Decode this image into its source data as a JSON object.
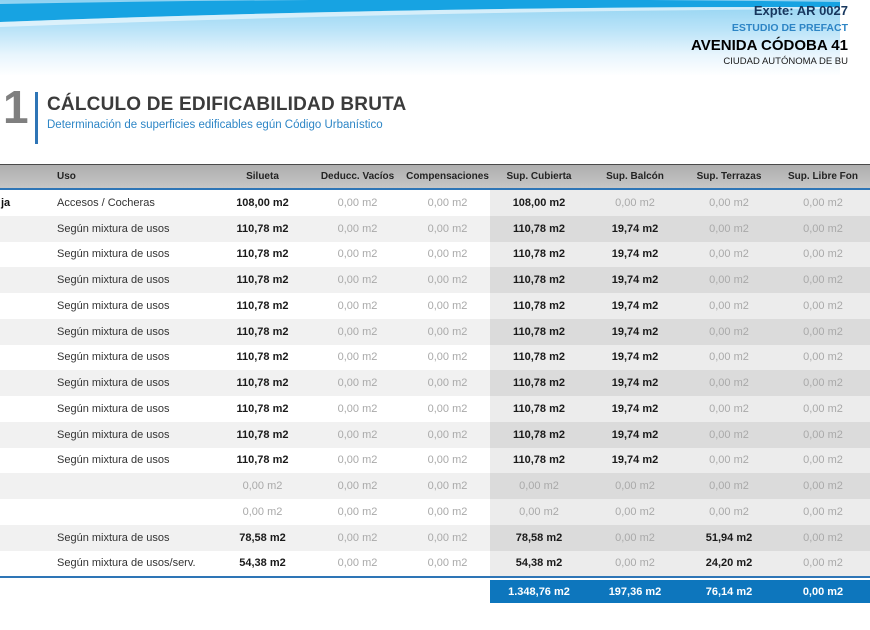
{
  "band": {
    "expediente": "Expte: AR 0027",
    "estudio": "ESTUDIO DE PREFACT",
    "address": "AVENIDA CÓDOBA 41",
    "city": "CIUDAD AUTÓNOMA DE BU"
  },
  "section": {
    "number": "1",
    "title": "CÁLCULO DE EDIFICABILIDAD BRUTA",
    "subtitle": "Determinación de superficies edificables egún Código Urbanístico"
  },
  "table": {
    "columns": [
      "",
      "Uso",
      "Silueta",
      "Deducc. Vacíos",
      "Compensaciones",
      "Sup. Cubierta",
      "Sup. Balcón",
      "Sup. Terrazas",
      "Sup. Libre Fon"
    ],
    "rows": [
      {
        "level": "ja",
        "uso": "Accesos / Cocheras",
        "silueta": "108,00 m2",
        "deducc": "0,00 m2",
        "comp": "0,00 m2",
        "cubierta": "108,00 m2",
        "balcon": "0,00 m2",
        "terrazas": "0,00 m2",
        "libre": "0,00 m2"
      },
      {
        "level": "",
        "uso": "Según mixtura de usos",
        "silueta": "110,78 m2",
        "deducc": "0,00 m2",
        "comp": "0,00 m2",
        "cubierta": "110,78 m2",
        "balcon": "19,74 m2",
        "terrazas": "0,00 m2",
        "libre": "0,00 m2"
      },
      {
        "level": "",
        "uso": "Según mixtura de usos",
        "silueta": "110,78 m2",
        "deducc": "0,00 m2",
        "comp": "0,00 m2",
        "cubierta": "110,78 m2",
        "balcon": "19,74 m2",
        "terrazas": "0,00 m2",
        "libre": "0,00 m2"
      },
      {
        "level": "",
        "uso": "Según mixtura de usos",
        "silueta": "110,78 m2",
        "deducc": "0,00 m2",
        "comp": "0,00 m2",
        "cubierta": "110,78 m2",
        "balcon": "19,74 m2",
        "terrazas": "0,00 m2",
        "libre": "0,00 m2"
      },
      {
        "level": "",
        "uso": "Según mixtura de usos",
        "silueta": "110,78 m2",
        "deducc": "0,00 m2",
        "comp": "0,00 m2",
        "cubierta": "110,78 m2",
        "balcon": "19,74 m2",
        "terrazas": "0,00 m2",
        "libre": "0,00 m2"
      },
      {
        "level": "",
        "uso": "Según mixtura de usos",
        "silueta": "110,78 m2",
        "deducc": "0,00 m2",
        "comp": "0,00 m2",
        "cubierta": "110,78 m2",
        "balcon": "19,74 m2",
        "terrazas": "0,00 m2",
        "libre": "0,00 m2"
      },
      {
        "level": "",
        "uso": "Según mixtura de usos",
        "silueta": "110,78 m2",
        "deducc": "0,00 m2",
        "comp": "0,00 m2",
        "cubierta": "110,78 m2",
        "balcon": "19,74 m2",
        "terrazas": "0,00 m2",
        "libre": "0,00 m2"
      },
      {
        "level": "",
        "uso": "Según mixtura de usos",
        "silueta": "110,78 m2",
        "deducc": "0,00 m2",
        "comp": "0,00 m2",
        "cubierta": "110,78 m2",
        "balcon": "19,74 m2",
        "terrazas": "0,00 m2",
        "libre": "0,00 m2"
      },
      {
        "level": "",
        "uso": "Según mixtura de usos",
        "silueta": "110,78 m2",
        "deducc": "0,00 m2",
        "comp": "0,00 m2",
        "cubierta": "110,78 m2",
        "balcon": "19,74 m2",
        "terrazas": "0,00 m2",
        "libre": "0,00 m2"
      },
      {
        "level": "",
        "uso": "Según mixtura de usos",
        "silueta": "110,78 m2",
        "deducc": "0,00 m2",
        "comp": "0,00 m2",
        "cubierta": "110,78 m2",
        "balcon": "19,74 m2",
        "terrazas": "0,00 m2",
        "libre": "0,00 m2"
      },
      {
        "level": "",
        "uso": "Según mixtura de usos",
        "silueta": "110,78 m2",
        "deducc": "0,00 m2",
        "comp": "0,00 m2",
        "cubierta": "110,78 m2",
        "balcon": "19,74 m2",
        "terrazas": "0,00 m2",
        "libre": "0,00 m2"
      },
      {
        "level": "",
        "uso": "",
        "silueta": "0,00 m2",
        "deducc": "0,00 m2",
        "comp": "0,00 m2",
        "cubierta": "0,00 m2",
        "balcon": "0,00 m2",
        "terrazas": "0,00 m2",
        "libre": "0,00 m2"
      },
      {
        "level": "",
        "uso": "",
        "silueta": "0,00 m2",
        "deducc": "0,00 m2",
        "comp": "0,00 m2",
        "cubierta": "0,00 m2",
        "balcon": "0,00 m2",
        "terrazas": "0,00 m2",
        "libre": "0,00 m2"
      },
      {
        "level": "",
        "uso": "Según mixtura de usos",
        "silueta": "78,58 m2",
        "deducc": "0,00 m2",
        "comp": "0,00 m2",
        "cubierta": "78,58 m2",
        "balcon": "0,00 m2",
        "terrazas": "51,94 m2",
        "libre": "0,00 m2"
      },
      {
        "level": "",
        "uso": "Según mixtura de usos/serv.",
        "silueta": "54,38 m2",
        "deducc": "0,00 m2",
        "comp": "0,00 m2",
        "cubierta": "54,38 m2",
        "balcon": "0,00 m2",
        "terrazas": "24,20 m2",
        "libre": "0,00 m2"
      }
    ],
    "totals": {
      "cubierta": "1.348,76 m2",
      "balcon": "197,36 m2",
      "terrazas": "76,14 m2",
      "libre": "0,00 m2"
    }
  },
  "colors": {
    "accent_blue": "#2e75b6",
    "total_bar_blue": "#0d76bd",
    "band_stripe_blue": "#17a3e2",
    "header_gray": "#b7b7b7"
  }
}
